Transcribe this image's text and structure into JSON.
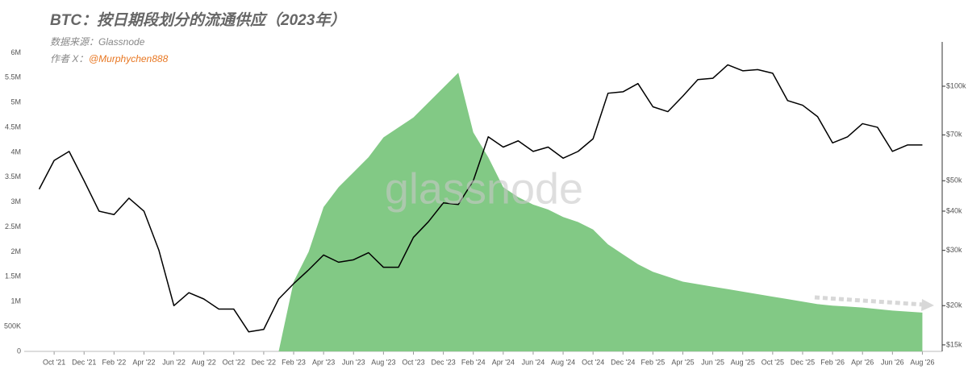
{
  "chart_data": {
    "type": "area-line",
    "title": "BTC：按日期段划分的流通供应（2023年）",
    "subtitle": "数据来源：Glassnode",
    "author_prefix": "作者 X：",
    "author_handle": "@Murphychen888",
    "watermark": "glassnode",
    "x": [
      "2021-09",
      "2021-10",
      "2021-11",
      "2021-12",
      "2022-01",
      "2022-02",
      "2022-03",
      "2022-04",
      "2022-05",
      "2022-06",
      "2022-07",
      "2022-08",
      "2022-09",
      "2022-10",
      "2022-11",
      "2022-12",
      "2023-01",
      "2023-02",
      "2023-03",
      "2023-04",
      "2023-05",
      "2023-06",
      "2023-07",
      "2023-08",
      "2023-09",
      "2023-10",
      "2023-11",
      "2023-12",
      "2024-01",
      "2024-02",
      "2024-03",
      "2024-04",
      "2024-05",
      "2024-06",
      "2024-07",
      "2024-08",
      "2024-09",
      "2024-10",
      "2024-11",
      "2024-12",
      "2025-01",
      "2025-02",
      "2025-03",
      "2025-04",
      "2025-05",
      "2025-06",
      "2025-07",
      "2025-08",
      "2025-09",
      "2025-10",
      "2025-11",
      "2025-12",
      "2026-01",
      "2026-02",
      "2026-03",
      "2026-04",
      "2026-05",
      "2026-06",
      "2026-07",
      "2026-08"
    ],
    "series": [
      {
        "color": "#82c985",
        "fill": true,
        "values": [
          null,
          null,
          null,
          null,
          null,
          null,
          null,
          null,
          null,
          null,
          null,
          null,
          null,
          null,
          null,
          null,
          0,
          1400000,
          2000000,
          2900000,
          3300000,
          3600000,
          3900000,
          4300000,
          4500000,
          4700000,
          5000000,
          5300000,
          5600000,
          4400000,
          3900000,
          3300000,
          3100000,
          2950000,
          2850000,
          2700000,
          2600000,
          2450000,
          2150000,
          1950000,
          1750000,
          1600000,
          1500000,
          1400000,
          1350000,
          1300000,
          1250000,
          1200000,
          1150000,
          1100000,
          1050000,
          1000000,
          950000,
          920000,
          900000,
          880000,
          850000,
          820000,
          800000,
          780000
        ]
      },
      {
        "color": "#000000",
        "axis": "y2",
        "values": [
          47000,
          58000,
          62000,
          50000,
          40000,
          39000,
          44000,
          40000,
          30000,
          20000,
          22000,
          21000,
          19500,
          19500,
          16500,
          16800,
          21000,
          23500,
          26000,
          29000,
          27500,
          28000,
          29500,
          26500,
          26500,
          33000,
          37000,
          42500,
          42000,
          50000,
          69000,
          64000,
          67000,
          62000,
          64000,
          59000,
          62000,
          68000,
          95000,
          96000,
          102000,
          86000,
          83000,
          93000,
          105000,
          106000,
          117000,
          112000,
          113000,
          110000,
          90000,
          87000,
          80000,
          66000,
          69000,
          76000,
          74000,
          62000,
          65000,
          65000
        ]
      }
    ],
    "xlim": [
      "2021-08",
      "2026-09"
    ],
    "xticks": [
      {
        "value": "2021-10",
        "label": "Oct '21"
      },
      {
        "value": "2021-12",
        "label": "Dec '21"
      },
      {
        "value": "2022-02",
        "label": "Feb '22"
      },
      {
        "value": "2022-04",
        "label": "Apr '22"
      },
      {
        "value": "2022-06",
        "label": "Jun '22"
      },
      {
        "value": "2022-08",
        "label": "Aug '22"
      },
      {
        "value": "2022-10",
        "label": "Oct '22"
      },
      {
        "value": "2022-12",
        "label": "Dec '22"
      },
      {
        "value": "2023-02",
        "label": "Feb '23"
      },
      {
        "value": "2023-04",
        "label": "Apr '23"
      },
      {
        "value": "2023-06",
        "label": "Jun '23"
      },
      {
        "value": "2023-08",
        "label": "Aug '23"
      },
      {
        "value": "2023-10",
        "label": "Oct '23"
      },
      {
        "value": "2023-12",
        "label": "Dec '23"
      },
      {
        "value": "2024-02",
        "label": "Feb '24"
      },
      {
        "value": "2024-04",
        "label": "Apr '24"
      },
      {
        "value": "2024-06",
        "label": "Jun '24"
      },
      {
        "value": "2024-08",
        "label": "Aug '24"
      },
      {
        "value": "2024-10",
        "label": "Oct '24"
      },
      {
        "value": "2024-12",
        "label": "Dec '24"
      },
      {
        "value": "2025-02",
        "label": "Feb '25"
      },
      {
        "value": "2025-04",
        "label": "Apr '25"
      },
      {
        "value": "2025-06",
        "label": "Jun '25"
      },
      {
        "value": "2025-08",
        "label": "Aug '25"
      },
      {
        "value": "2025-10",
        "label": "Oct '25"
      },
      {
        "value": "2025-12",
        "label": "Dec '25"
      },
      {
        "value": "2026-02",
        "label": "Feb '26"
      },
      {
        "value": "2026-04",
        "label": "Apr '26"
      },
      {
        "value": "2026-06",
        "label": "Jun '26"
      },
      {
        "value": "2026-08",
        "label": "Aug '26"
      }
    ],
    "ylim": [
      0,
      6170000
    ],
    "yticks": [
      0,
      {
        "value": 500000,
        "label": "500K"
      },
      {
        "value": 1000000,
        "label": "1M"
      },
      {
        "value": 1500000,
        "label": "1.5M"
      },
      {
        "value": 2000000,
        "label": "2M"
      },
      {
        "value": 2500000,
        "label": "2.5M"
      },
      {
        "value": 3000000,
        "label": "3M"
      },
      {
        "value": 3500000,
        "label": "3.5M"
      },
      {
        "value": 4000000,
        "label": "4M"
      },
      {
        "value": 4500000,
        "label": "4.5M"
      },
      {
        "value": 5000000,
        "label": "5M"
      },
      {
        "value": 5500000,
        "label": "5.5M"
      },
      {
        "value": 6000000,
        "label": "6M"
      }
    ],
    "y2lim": [
      14300,
      136000
    ],
    "y2_log": true,
    "y2ticks": [
      {
        "value": 15000,
        "label": "$15k"
      },
      {
        "value": 20000,
        "label": "$20k"
      },
      {
        "value": 30000,
        "label": "$30k"
      },
      {
        "value": 40000,
        "label": "$40k"
      },
      {
        "value": 50000,
        "label": "$50k"
      },
      {
        "value": 70000,
        "label": "$70k"
      },
      {
        "value": 100000,
        "label": "$100k"
      }
    ]
  }
}
